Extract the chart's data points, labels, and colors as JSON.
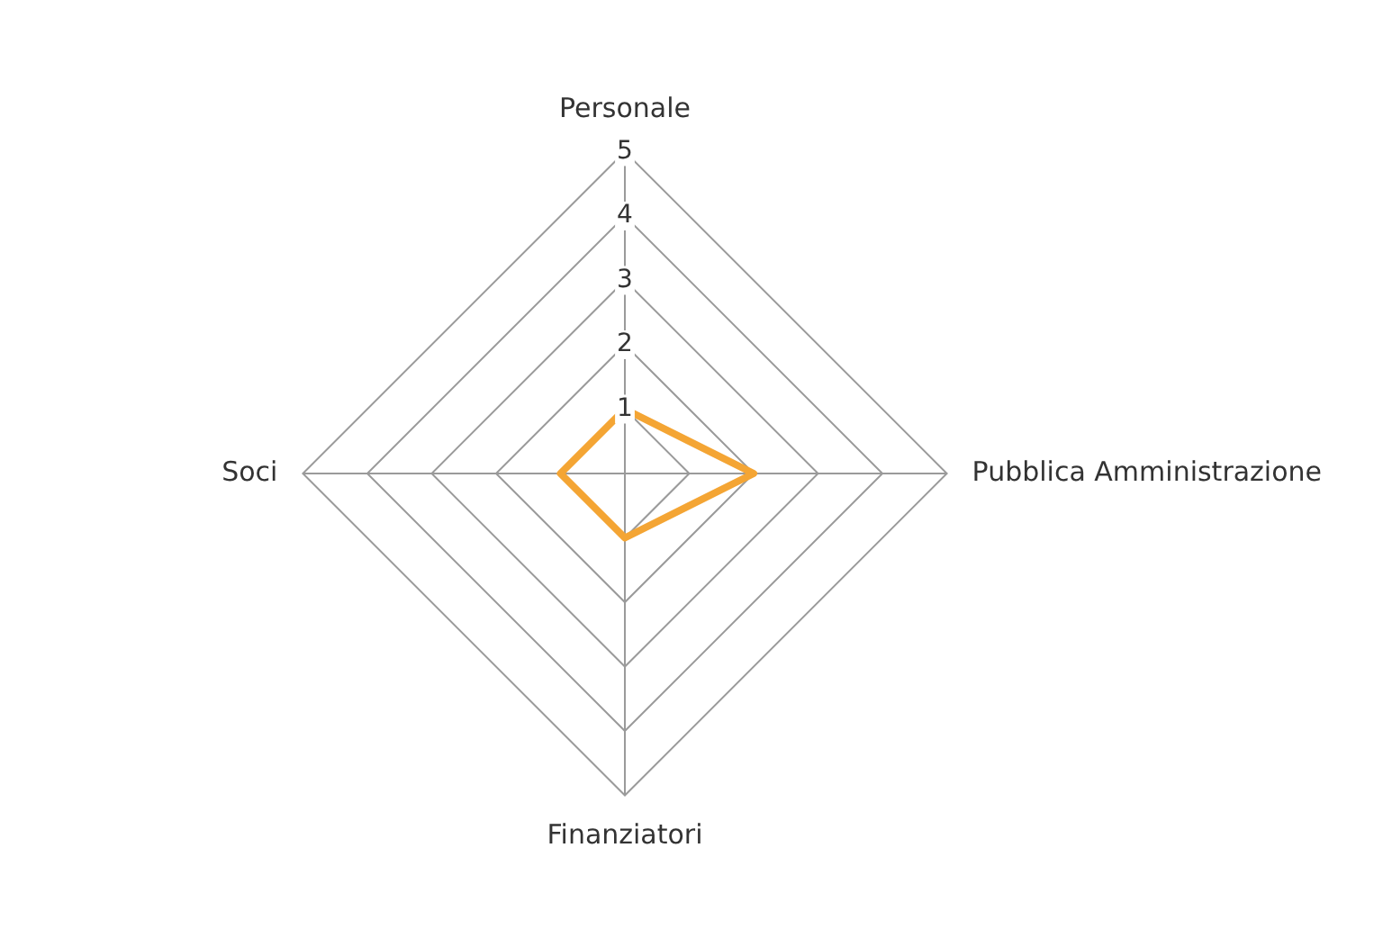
{
  "chart_data": {
    "type": "radar",
    "categories": [
      "Personale",
      "Pubblica Amministrazione",
      "Finanziatori",
      "Soci"
    ],
    "series": [
      {
        "color": "#f4a534",
        "values": [
          1,
          2,
          1,
          1
        ]
      }
    ],
    "ylim": [
      0,
      5
    ],
    "yticks": [
      1,
      2,
      3,
      4,
      5
    ],
    "grid": true,
    "legend": false,
    "marker": "none",
    "line_style": "solid"
  }
}
